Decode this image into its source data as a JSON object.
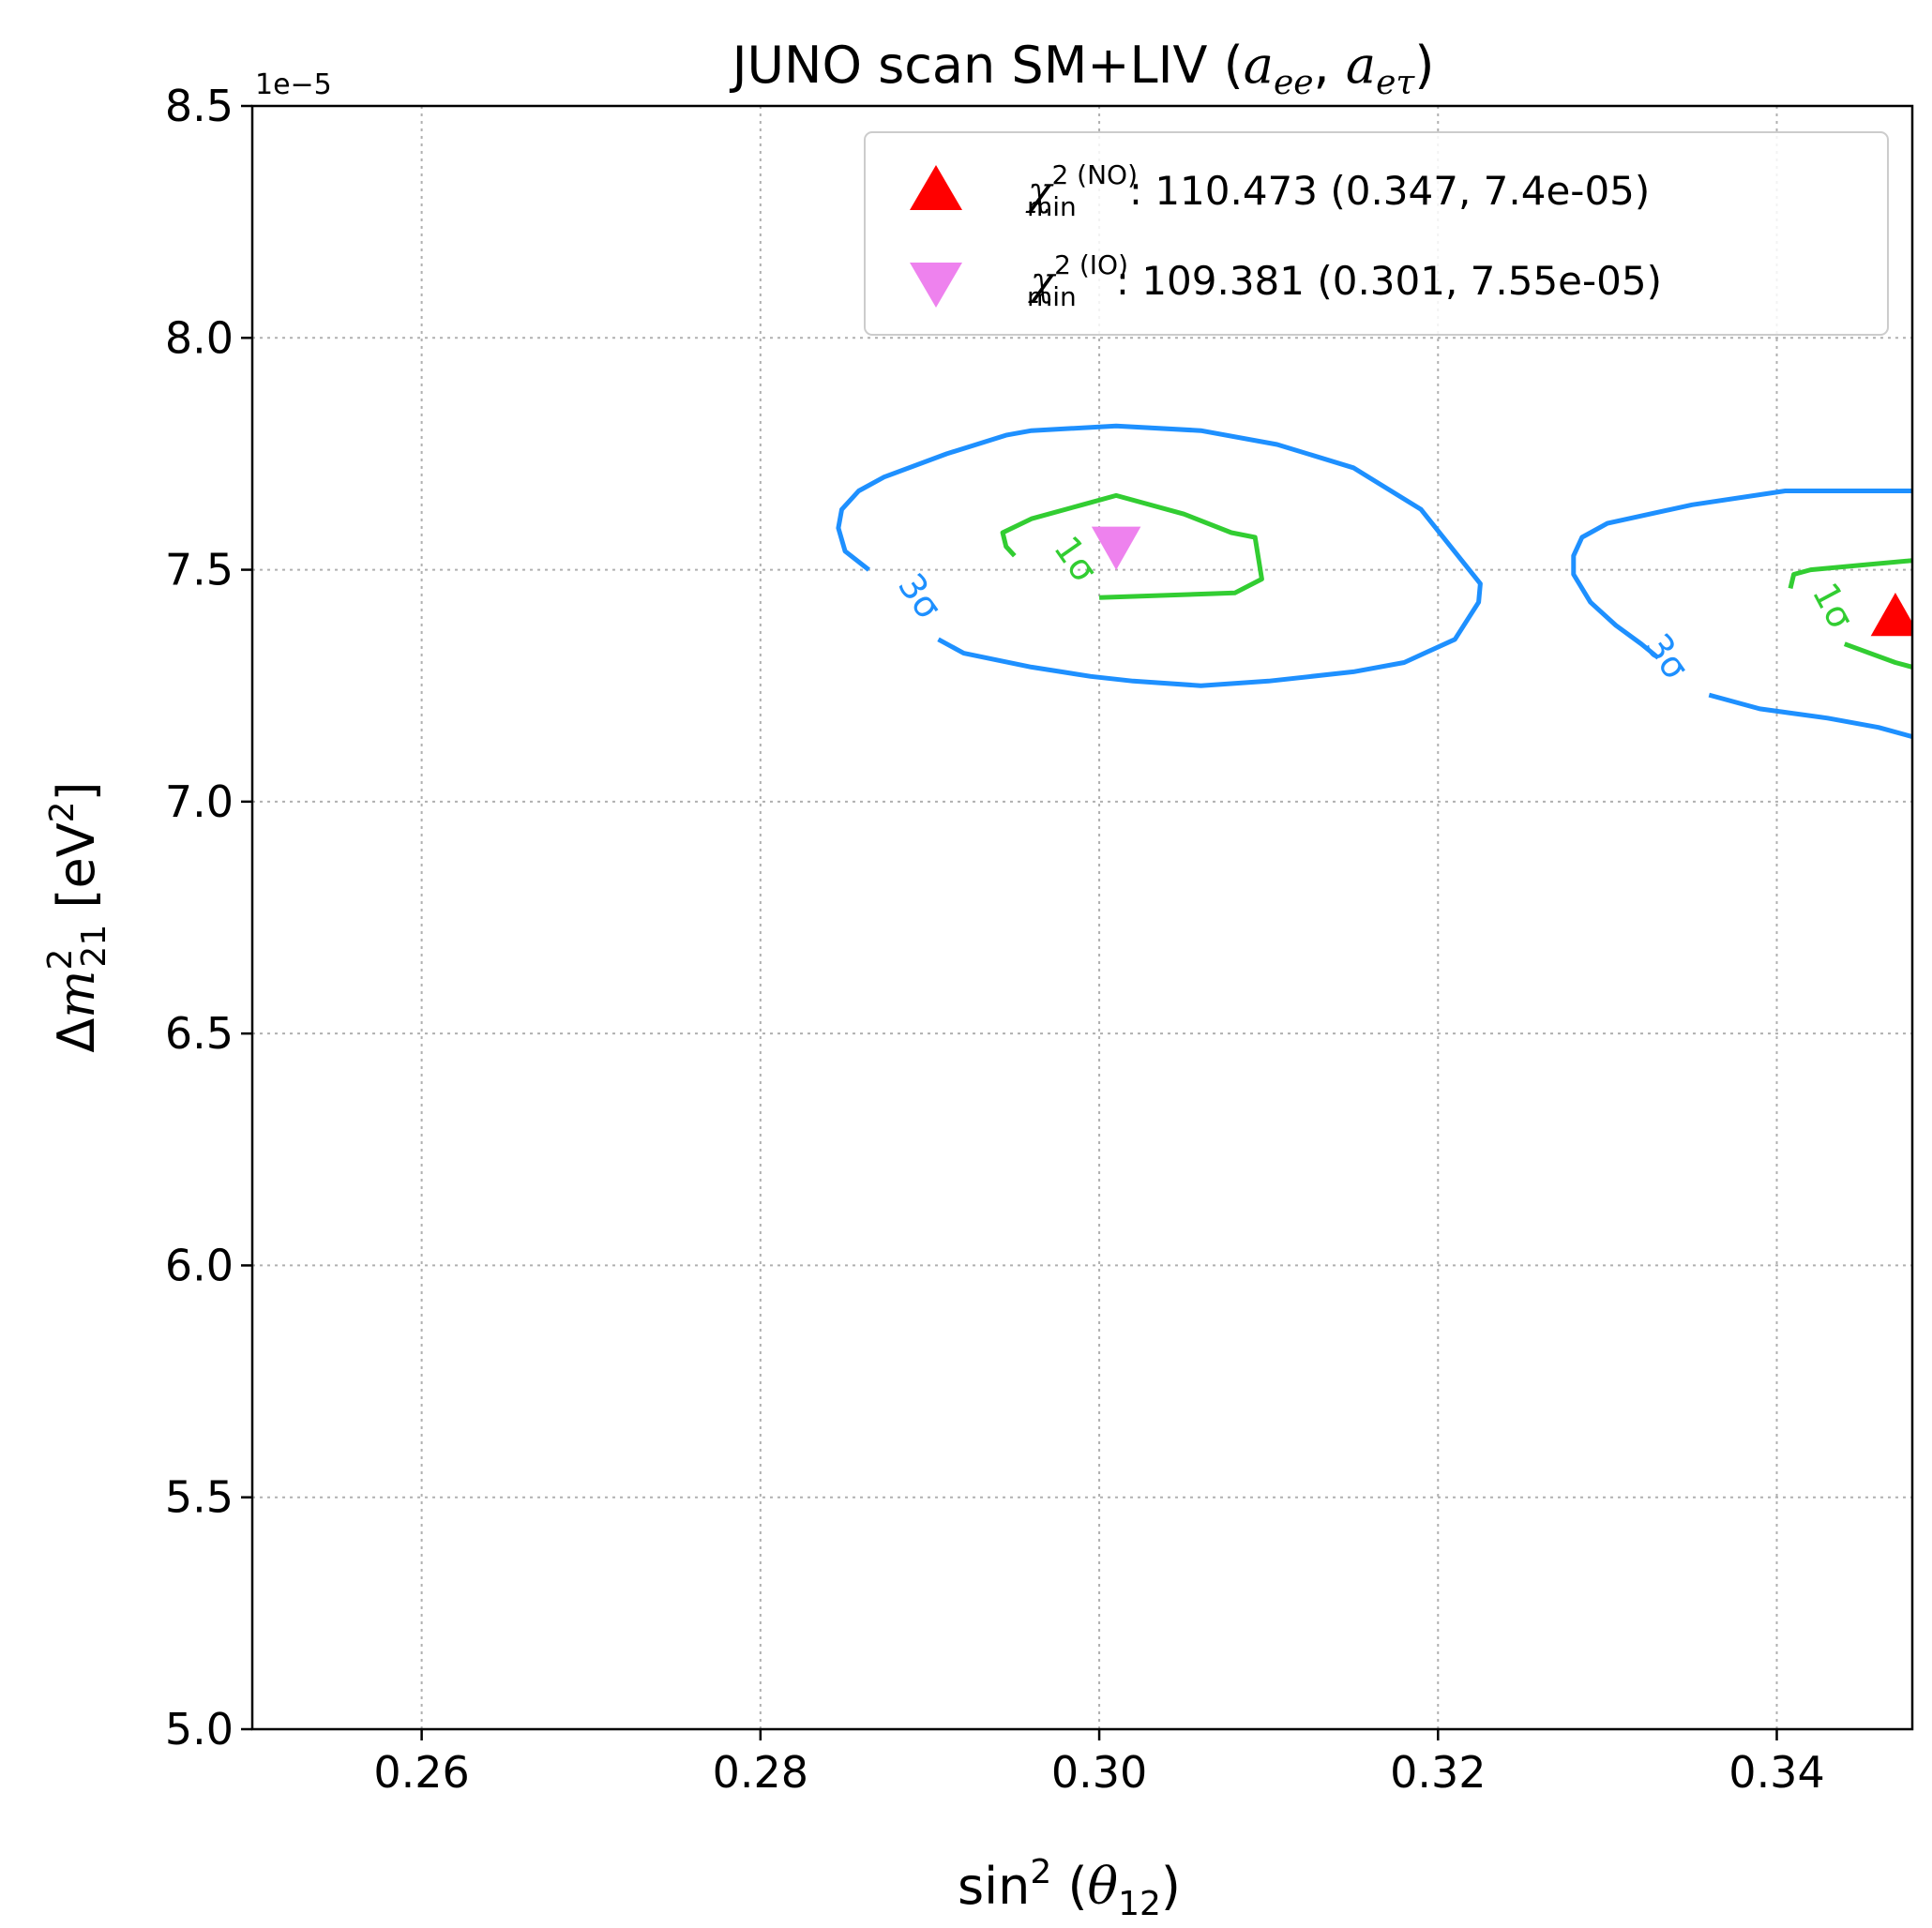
{
  "chart_data": {
    "type": "contour",
    "title": "JUNO scan SM+LIV",
    "title_math": "(a_ee, a_eτ)",
    "title_sub_1": "ee",
    "title_sub_2": "eτ",
    "xlabel_prefix": "sin",
    "xlabel_sup": "2",
    "xlabel_theta": "θ",
    "xlabel_sub": "12",
    "ylabel_prefix": "Δ",
    "ylabel_m": "m",
    "ylabel_sup": "2",
    "ylabel_sub": "21",
    "ylabel_unit": "[eV",
    "ylabel_unit_sup": "2",
    "ylabel_unit_close": "]",
    "offset_label": "1e−5",
    "xlim": [
      0.25,
      0.348
    ],
    "ylim": [
      5e-05,
      8.5e-05
    ],
    "y_scale": 1e-05,
    "xticks": [
      0.26,
      0.28,
      0.3,
      0.32,
      0.34
    ],
    "xtick_labels": [
      "0.26",
      "0.28",
      "0.30",
      "0.32",
      "0.34"
    ],
    "yticks": [
      5.0,
      5.5,
      6.0,
      6.5,
      7.0,
      7.5,
      8.0,
      8.5
    ],
    "ytick_labels": [
      "5.0",
      "5.5",
      "6.0",
      "6.5",
      "7.0",
      "7.5",
      "8.0",
      "8.5"
    ],
    "grid": true,
    "legend_position": "top-right",
    "legend": [
      {
        "label_prefix": "χ",
        "sup": "2 (NO)",
        "sub": "min",
        "text": ": 110.473 (0.347, 7.4e-05)",
        "marker": "triangle-up",
        "color": "#ff0000"
      },
      {
        "label_prefix": "χ",
        "sup": "2 (IO)",
        "sub": "min",
        "text": ": 109.381 (0.301, 7.55e-05)",
        "marker": "triangle-down",
        "color": "#ee82ee"
      }
    ],
    "best_fit": [
      {
        "ordering": "NO",
        "x": 0.347,
        "y": 7.4e-05,
        "color": "#ff0000",
        "marker": "triangle-up"
      },
      {
        "ordering": "IO",
        "x": 0.301,
        "y": 7.55e-05,
        "color": "#ee82ee",
        "marker": "triangle-down"
      }
    ],
    "contour_labels": [
      "3σ",
      "1σ",
      "1σ",
      "3σ"
    ],
    "contours": [
      {
        "name": "IO-3sigma",
        "level": "3σ",
        "color": "#1e90ff",
        "label": "3σ",
        "label_at": [
          0.2893,
          7.44
        ],
        "label_angle": 55,
        "points": [
          [
            0.2864,
            7.5
          ],
          [
            0.285,
            7.54
          ],
          [
            0.2846,
            7.59
          ],
          [
            0.2848,
            7.63
          ],
          [
            0.2858,
            7.67
          ],
          [
            0.2873,
            7.7
          ],
          [
            0.291,
            7.75
          ],
          [
            0.2945,
            7.79
          ],
          [
            0.296,
            7.8
          ],
          [
            0.301,
            7.81
          ],
          [
            0.306,
            7.8
          ],
          [
            0.3105,
            7.77
          ],
          [
            0.315,
            7.72
          ],
          [
            0.319,
            7.63
          ],
          [
            0.3214,
            7.52
          ],
          [
            0.3225,
            7.47
          ],
          [
            0.3224,
            7.43
          ],
          [
            0.321,
            7.35
          ],
          [
            0.318,
            7.3
          ],
          [
            0.315,
            7.28
          ],
          [
            0.31,
            7.26
          ],
          [
            0.306,
            7.25
          ],
          [
            0.302,
            7.26
          ],
          [
            0.2995,
            7.27
          ],
          [
            0.296,
            7.29
          ],
          [
            0.292,
            7.32
          ],
          [
            0.2905,
            7.35
          ]
        ]
      },
      {
        "name": "IO-1sigma",
        "level": "1σ",
        "color": "#32cd32",
        "label": "1σ",
        "label_at": [
          0.2985,
          7.52
        ],
        "label_angle": 55,
        "points": [
          [
            0.295,
            7.53
          ],
          [
            0.2945,
            7.55
          ],
          [
            0.2943,
            7.58
          ],
          [
            0.296,
            7.61
          ],
          [
            0.299,
            7.64
          ],
          [
            0.301,
            7.66
          ],
          [
            0.305,
            7.62
          ],
          [
            0.3078,
            7.58
          ],
          [
            0.3092,
            7.57
          ],
          [
            0.3096,
            7.48
          ],
          [
            0.308,
            7.45
          ],
          [
            0.3,
            7.44
          ]
        ]
      },
      {
        "name": "NO-3sigma",
        "level": "3σ",
        "color": "#1e90ff",
        "label": "3σ",
        "label_at": [
          0.3334,
          7.31
        ],
        "label_angle": 55,
        "points": [
          [
            0.348,
            7.67
          ],
          [
            0.345,
            7.67
          ],
          [
            0.3405,
            7.67
          ],
          [
            0.335,
            7.64
          ],
          [
            0.33,
            7.6
          ],
          [
            0.3285,
            7.57
          ],
          [
            0.328,
            7.53
          ],
          [
            0.328,
            7.49
          ],
          [
            0.329,
            7.43
          ],
          [
            0.3305,
            7.38
          ],
          [
            0.332,
            7.34
          ],
          [
            0.333,
            7.31
          ],
          null,
          [
            0.336,
            7.23
          ],
          [
            0.339,
            7.2
          ],
          [
            0.343,
            7.18
          ],
          [
            0.346,
            7.16
          ],
          [
            0.348,
            7.14
          ]
        ]
      },
      {
        "name": "NO-1sigma",
        "level": "1σ",
        "color": "#32cd32",
        "label": "1σ",
        "label_at": [
          0.3432,
          7.42
        ],
        "label_angle": 62,
        "points": [
          [
            0.348,
            7.52
          ],
          [
            0.345,
            7.51
          ],
          [
            0.342,
            7.5
          ],
          [
            0.341,
            7.49
          ],
          [
            0.3408,
            7.46
          ],
          null,
          [
            0.344,
            7.34
          ],
          [
            0.347,
            7.3
          ],
          [
            0.348,
            7.29
          ]
        ]
      }
    ]
  }
}
